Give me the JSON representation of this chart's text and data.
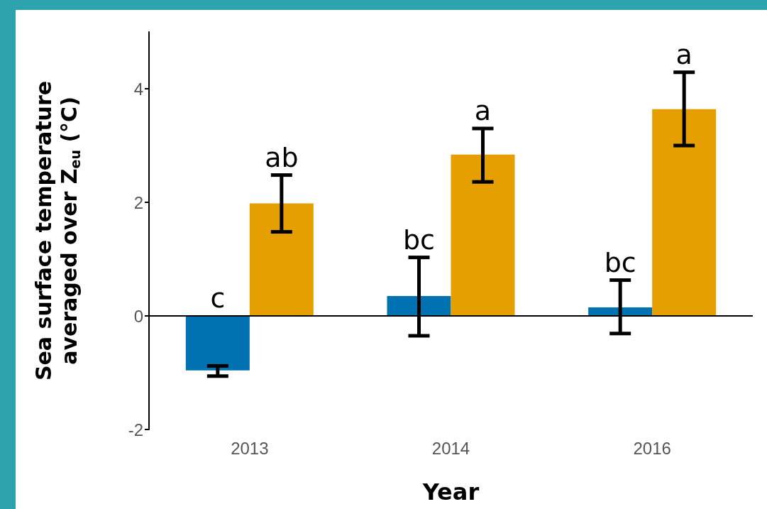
{
  "chart_data": {
    "type": "bar",
    "xlabel": "Year",
    "ylabel": "Sea surface temperature averaged over Z$_{eu}$ (°C)",
    "categories": [
      "2013",
      "2014",
      "2016"
    ],
    "series": [
      {
        "color": "#0072b2",
        "values": [
          -0.96,
          0.35,
          0.15
        ],
        "errors": [
          [
            -1.06,
            -0.88
          ],
          [
            -0.35,
            1.03
          ],
          [
            -0.31,
            0.63
          ]
        ]
      },
      {
        "color": "#e69f00",
        "values": [
          1.98,
          2.84,
          3.64
        ],
        "errors": [
          [
            1.48,
            2.48
          ],
          [
            2.36,
            3.3
          ],
          [
            3.0,
            4.29
          ]
        ]
      }
    ],
    "ylim": [
      -2,
      5
    ],
    "yticks": [
      -2,
      0,
      2,
      4
    ],
    "grid": false,
    "ref_lines": [
      {
        "axis": "y",
        "value": 0,
        "color": "#000000"
      }
    ],
    "annotations": [
      "c",
      "ab",
      "bc",
      "a",
      "bc",
      "a"
    ]
  }
}
